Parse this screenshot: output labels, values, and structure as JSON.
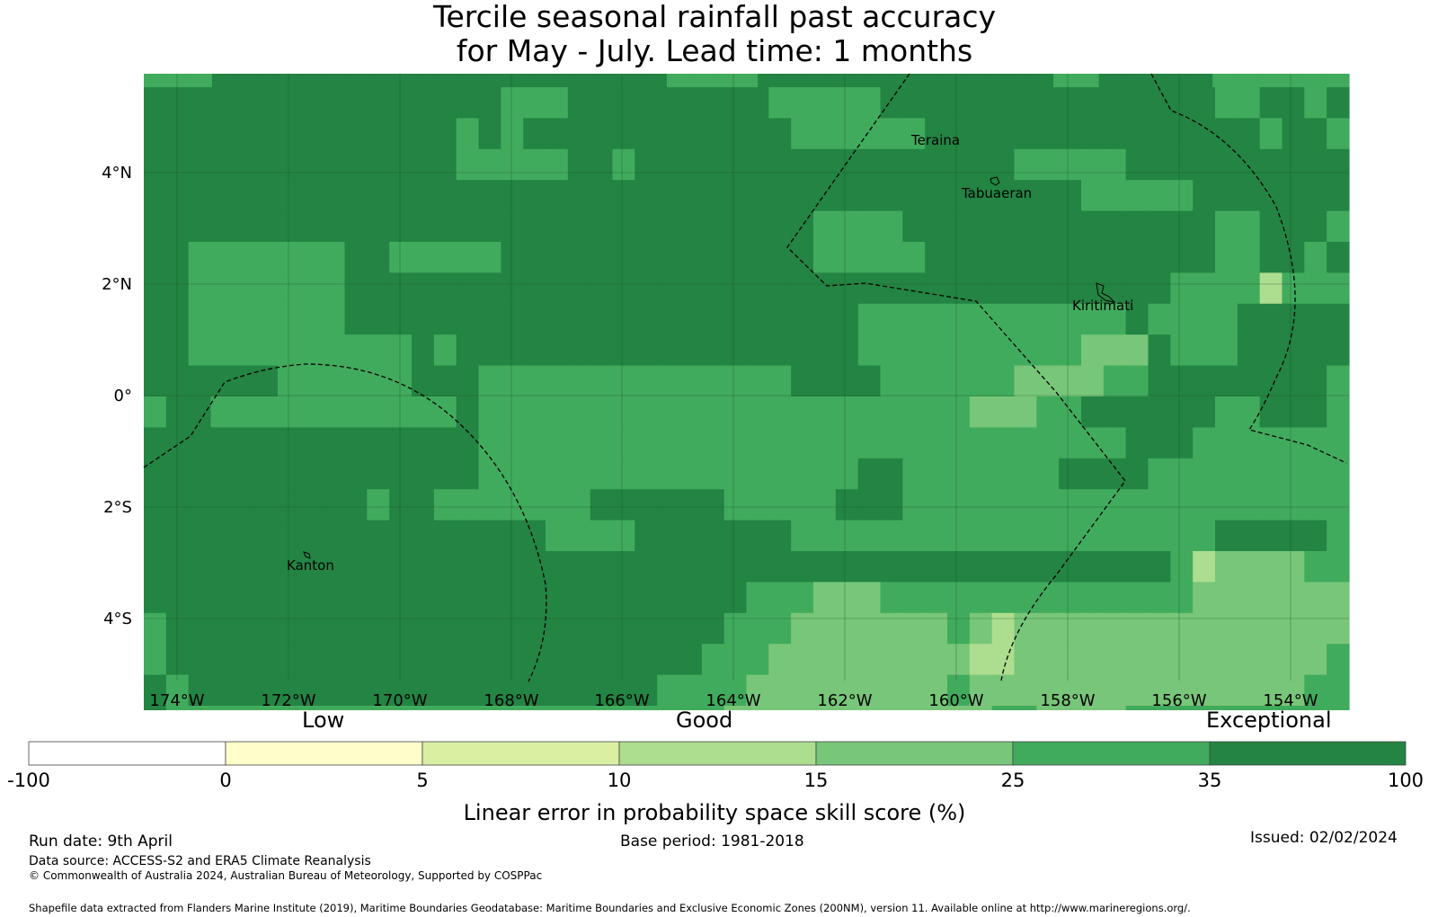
{
  "title": {
    "line1": "Tercile seasonal rainfall past accuracy",
    "line2": "for May - July. Lead time: 1 months"
  },
  "map": {
    "lon_ticks": [
      "174°W",
      "172°W",
      "170°W",
      "168°W",
      "166°W",
      "164°W",
      "162°W",
      "160°W",
      "158°W",
      "156°W",
      "154°W"
    ],
    "lat_ticks": [
      "4°N",
      "2°N",
      "0°",
      "2°S",
      "4°S"
    ],
    "places": [
      "Teraina",
      "Tabuaeran",
      "Kiritimati",
      "Kanton"
    ],
    "colors": {
      "c1": "#f7fcb9",
      "c2": "#d9f0a3",
      "c3": "#addd8e",
      "c4": "#78c679",
      "c5": "#41ab5d",
      "c6": "#238443"
    },
    "grid_rows": [
      "55566666666666666666666555566666666666665566666555555",
      "666666666666666655566666666655555666666666666666556656",
      "666666666666665656666666666665555556666666666666665665",
      "666666666666665555566566666666666666666555556666666666",
      "666666666666666666666666666666666666666666555556666666",
      "666666666666666666666666666666555566666666666666556665",
      "665555555665555566666666666666555556666666666666556656",
      "665555555666666666666666666666666666666666666655553555",
      "665555555666666666666666666666665555555555556555566666",
      "665555555555656666666666666666665555555555444655566666",
      "666666555555666555555555555556666555555444455666666665",
      "566555555555556555555555555555555555544455666666556665",
      "666666666666666555555555555555555555555555556665555555",
      "666666666666666555555555555555556655555556666555555555",
      "666666666656655555556666665555566655555555555555555555",
      "666666666666666666555566666665555555555555555555666665",
      "666666666666666666666666666666666666666666666653444455",
      "666666666666666666666666666555444555555555555554444444",
      "566666666666666666666666665554444444543444444444444444",
      "566666666666666666666666655544444444433444444444444445",
      "656666666666666666666665555444444444544444444444444455",
      "655555555555555555555555554444444444445544445555555555",
      "655555555555555555555545555555555555555555555555665555",
      "555555555455555555555555555555555555555555555556655555"
    ]
  },
  "colorbar": {
    "ticks": [
      "-100",
      "0",
      "5",
      "10",
      "15",
      "25",
      "35",
      "100"
    ],
    "colors": [
      "#ffffff",
      "#ffffcc",
      "#d9f0a3",
      "#addd8e",
      "#78c679",
      "#41ab5d",
      "#238443"
    ],
    "categories": [
      "Low",
      "Good",
      "Exceptional"
    ],
    "label": "Linear error in probability space skill score (%)"
  },
  "footer": {
    "run_date": "Run date: 9th April",
    "base_period": "Base period: 1981-2018",
    "issued": "Issued: 02/02/2024",
    "data_source": "Data source: ACCESS-S2 and ERA5 Climate Reanalysis",
    "copyright": "© Commonwealth of Australia 2024, Australian Bureau of Meteorology, Supported by COSPPac",
    "shapefile": "Shapefile data extracted from Flanders Marine Institute (2019), Maritime Boundaries Geodatabase: Maritime Boundaries and Exclusive Economic Zones (200NM), version 11. Available online at http://www.marineregions.org/."
  }
}
